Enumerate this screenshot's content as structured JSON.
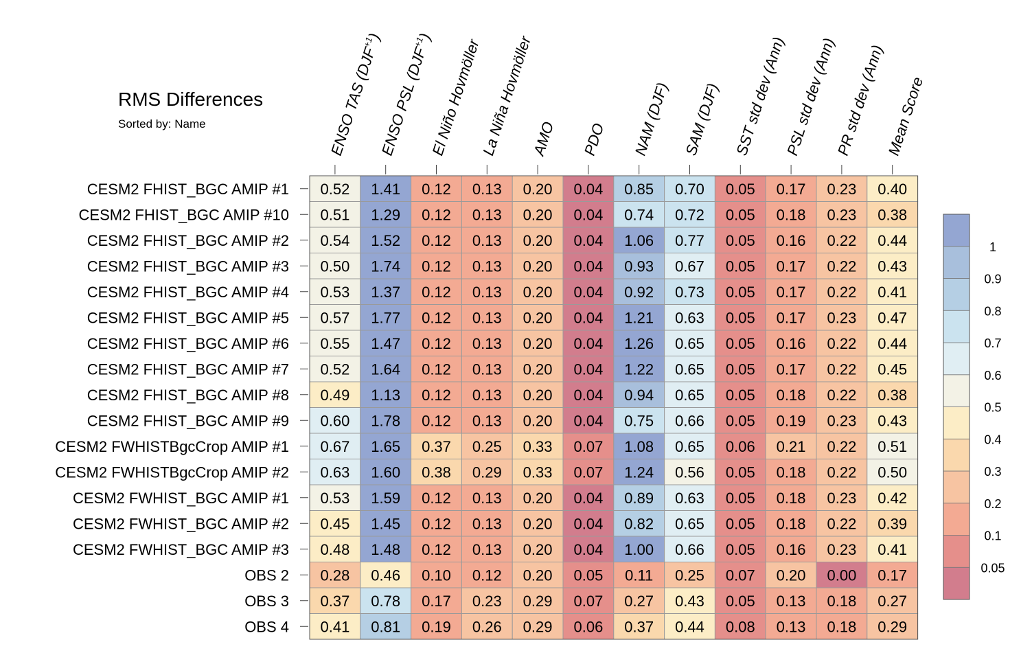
{
  "chart_data": {
    "type": "heatmap",
    "title": "RMS Differences",
    "subtitle": "Sorted by: Name",
    "columns": [
      "ENSO TAS (DJF+1)",
      "ENSO PSL (DJF+1)",
      "El Niño Hovmöller",
      "La Niña Hovmöller",
      "AMO",
      "PDO",
      "NAM (DJF)",
      "SAM (DJF)",
      "SST std dev (Ann)",
      "PSL std dev (Ann)",
      "PR std dev (Ann)",
      "Mean Score"
    ],
    "column_labels": [
      {
        "main": "ENSO TAS (DJF",
        "sup": "+1",
        "tail": ")"
      },
      {
        "main": "ENSO PSL (DJF",
        "sup": "+1",
        "tail": ")"
      },
      {
        "main": "El Niño Hovmöller",
        "sup": "",
        "tail": ""
      },
      {
        "main": "La Niña Hovmöller",
        "sup": "",
        "tail": ""
      },
      {
        "main": "AMO",
        "sup": "",
        "tail": ""
      },
      {
        "main": "PDO",
        "sup": "",
        "tail": ""
      },
      {
        "main": "NAM (DJF)",
        "sup": "",
        "tail": ""
      },
      {
        "main": "SAM (DJF)",
        "sup": "",
        "tail": ""
      },
      {
        "main": "SST std dev (Ann)",
        "sup": "",
        "tail": ""
      },
      {
        "main": "PSL std dev (Ann)",
        "sup": "",
        "tail": ""
      },
      {
        "main": "PR std dev (Ann)",
        "sup": "",
        "tail": ""
      },
      {
        "main": "Mean Score",
        "sup": "",
        "tail": ""
      }
    ],
    "rows": [
      "CESM2 FHIST_BGC AMIP #1",
      "CESM2 FHIST_BGC AMIP #10",
      "CESM2 FHIST_BGC AMIP #2",
      "CESM2 FHIST_BGC AMIP #3",
      "CESM2 FHIST_BGC AMIP #4",
      "CESM2 FHIST_BGC AMIP #5",
      "CESM2 FHIST_BGC AMIP #6",
      "CESM2 FHIST_BGC AMIP #7",
      "CESM2 FHIST_BGC AMIP #8",
      "CESM2 FHIST_BGC AMIP #9",
      "CESM2 FWHISTBgcCrop AMIP #1",
      "CESM2 FWHISTBgcCrop AMIP #2",
      "CESM2 FWHIST_BGC AMIP #1",
      "CESM2 FWHIST_BGC AMIP #2",
      "CESM2 FWHIST_BGC AMIP #3",
      "OBS 2",
      "OBS 3",
      "OBS 4"
    ],
    "values": [
      [
        "0.52",
        "1.41",
        "0.12",
        "0.13",
        "0.20",
        "0.04",
        "0.85",
        "0.70",
        "0.05",
        "0.17",
        "0.23",
        "0.40"
      ],
      [
        "0.51",
        "1.29",
        "0.12",
        "0.13",
        "0.20",
        "0.04",
        "0.74",
        "0.72",
        "0.05",
        "0.18",
        "0.23",
        "0.38"
      ],
      [
        "0.54",
        "1.52",
        "0.12",
        "0.13",
        "0.20",
        "0.04",
        "1.06",
        "0.77",
        "0.05",
        "0.16",
        "0.22",
        "0.44"
      ],
      [
        "0.50",
        "1.74",
        "0.12",
        "0.13",
        "0.20",
        "0.04",
        "0.93",
        "0.67",
        "0.05",
        "0.17",
        "0.22",
        "0.43"
      ],
      [
        "0.53",
        "1.37",
        "0.12",
        "0.13",
        "0.20",
        "0.04",
        "0.92",
        "0.73",
        "0.05",
        "0.17",
        "0.22",
        "0.41"
      ],
      [
        "0.57",
        "1.77",
        "0.12",
        "0.13",
        "0.20",
        "0.04",
        "1.21",
        "0.63",
        "0.05",
        "0.17",
        "0.23",
        "0.47"
      ],
      [
        "0.55",
        "1.47",
        "0.12",
        "0.13",
        "0.20",
        "0.04",
        "1.26",
        "0.65",
        "0.05",
        "0.16",
        "0.22",
        "0.44"
      ],
      [
        "0.52",
        "1.64",
        "0.12",
        "0.13",
        "0.20",
        "0.04",
        "1.22",
        "0.65",
        "0.05",
        "0.17",
        "0.22",
        "0.45"
      ],
      [
        "0.49",
        "1.13",
        "0.12",
        "0.13",
        "0.20",
        "0.04",
        "0.94",
        "0.65",
        "0.05",
        "0.18",
        "0.22",
        "0.38"
      ],
      [
        "0.60",
        "1.78",
        "0.12",
        "0.13",
        "0.20",
        "0.04",
        "0.75",
        "0.66",
        "0.05",
        "0.19",
        "0.23",
        "0.43"
      ],
      [
        "0.67",
        "1.65",
        "0.37",
        "0.25",
        "0.33",
        "0.07",
        "1.08",
        "0.65",
        "0.06",
        "0.21",
        "0.22",
        "0.51"
      ],
      [
        "0.63",
        "1.60",
        "0.38",
        "0.29",
        "0.33",
        "0.07",
        "1.24",
        "0.56",
        "0.05",
        "0.18",
        "0.22",
        "0.50"
      ],
      [
        "0.53",
        "1.59",
        "0.12",
        "0.13",
        "0.20",
        "0.04",
        "0.89",
        "0.63",
        "0.05",
        "0.18",
        "0.23",
        "0.42"
      ],
      [
        "0.45",
        "1.45",
        "0.12",
        "0.13",
        "0.20",
        "0.04",
        "0.82",
        "0.65",
        "0.05",
        "0.18",
        "0.22",
        "0.39"
      ],
      [
        "0.48",
        "1.48",
        "0.12",
        "0.13",
        "0.20",
        "0.04",
        "1.00",
        "0.66",
        "0.05",
        "0.16",
        "0.23",
        "0.41"
      ],
      [
        "0.28",
        "0.46",
        "0.10",
        "0.12",
        "0.20",
        "0.05",
        "0.11",
        "0.25",
        "0.07",
        "0.20",
        "0.00",
        "0.17"
      ],
      [
        "0.37",
        "0.78",
        "0.17",
        "0.23",
        "0.29",
        "0.07",
        "0.27",
        "0.43",
        "0.05",
        "0.13",
        "0.18",
        "0.27"
      ],
      [
        "0.41",
        "0.81",
        "0.19",
        "0.26",
        "0.29",
        "0.06",
        "0.37",
        "0.44",
        "0.08",
        "0.13",
        "0.18",
        "0.29"
      ]
    ],
    "colorbar": {
      "levels": [
        0.05,
        0.1,
        0.2,
        0.3,
        0.4,
        0.5,
        0.6,
        0.7,
        0.8,
        0.9,
        1
      ],
      "labels": [
        "0.05",
        "0.1",
        "0.2",
        "0.3",
        "0.4",
        "0.5",
        "0.6",
        "0.7",
        "0.8",
        "0.9",
        "1"
      ],
      "colors": [
        "#d27d8d",
        "#e58f8b",
        "#f3aa93",
        "#f7c4a2",
        "#fad8ad",
        "#fcedc6",
        "#f3f2e6",
        "#e0eef3",
        "#cbe3ef",
        "#b5cfe4",
        "#a8bfdc",
        "#94a6d2"
      ]
    }
  }
}
